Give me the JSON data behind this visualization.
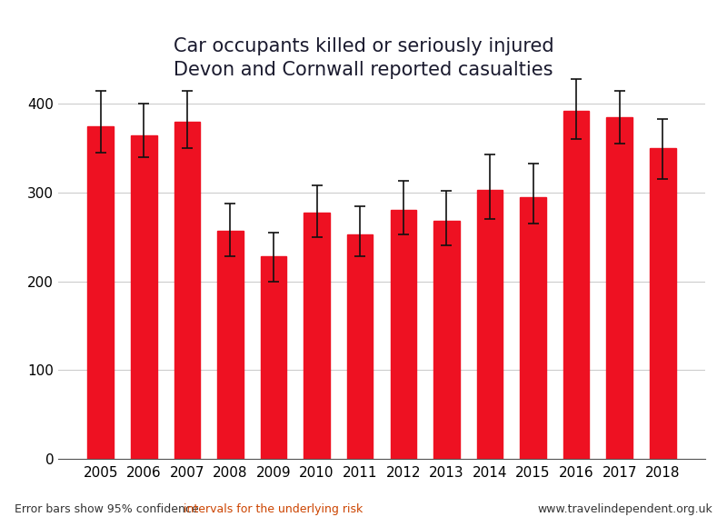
{
  "title_line1": "Car occupants killed or seriously injured",
  "title_line2": "Devon and Cornwall reported casualties",
  "years": [
    2005,
    2006,
    2007,
    2008,
    2009,
    2010,
    2011,
    2012,
    2013,
    2014,
    2015,
    2016,
    2017,
    2018
  ],
  "values": [
    375,
    365,
    380,
    257,
    228,
    277,
    253,
    280,
    268,
    303,
    295,
    392,
    385,
    350
  ],
  "err_low": [
    30,
    25,
    30,
    29,
    28,
    27,
    25,
    27,
    28,
    33,
    30,
    32,
    30,
    35
  ],
  "err_high": [
    40,
    35,
    35,
    31,
    27,
    31,
    32,
    33,
    34,
    40,
    38,
    36,
    30,
    33
  ],
  "bar_color": "#ee1122",
  "error_bar_color": "#111111",
  "ylabel_ticks": [
    0,
    100,
    200,
    300,
    400
  ],
  "ylim": [
    0,
    440
  ],
  "grid_color": "#cccccc",
  "background_color": "#ffffff",
  "title_color": "#1a1a2e",
  "footnote_left_normal": "Error bars show 95% confidence ",
  "footnote_left_colored": "intervals for the underlying risk",
  "footnote_right": "www.travelindependent.org.uk",
  "footnote_color_normal": "#333333",
  "footnote_color_red": "#cc4400",
  "title_fontsize": 15,
  "tick_fontsize": 11,
  "footnote_fontsize": 9
}
